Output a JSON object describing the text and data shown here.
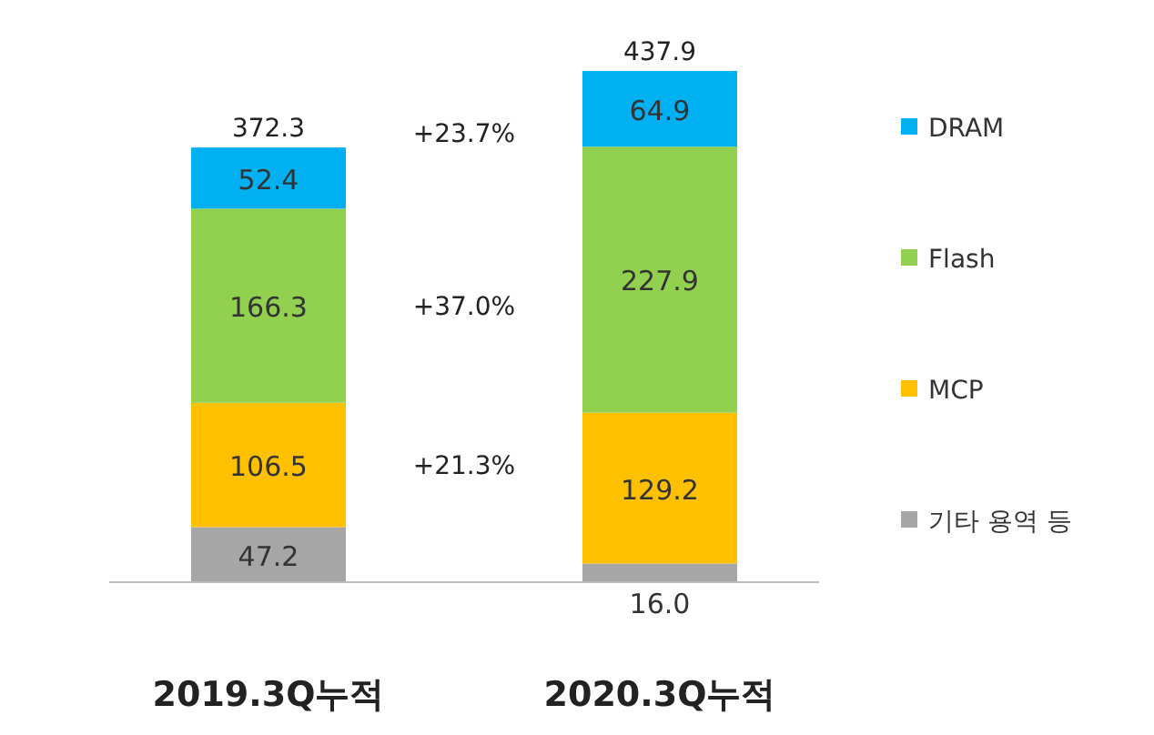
{
  "chart_data": {
    "type": "bar",
    "stacked": true,
    "legend": "right",
    "categories": [
      "2019.3Q누적",
      "2020.3Q누적"
    ],
    "series": [
      {
        "name": "기타 용역 등",
        "color": "#a6a6a6",
        "values": [
          47.2,
          16.0
        ],
        "value_labels": [
          "47.2",
          "16.0"
        ]
      },
      {
        "name": "MCP",
        "color": "#ffc000",
        "values": [
          106.5,
          129.2
        ],
        "value_labels": [
          "106.5",
          "129.2"
        ]
      },
      {
        "name": "Flash",
        "color": "#92d050",
        "values": [
          166.3,
          227.9
        ],
        "value_labels": [
          "166.3",
          "227.9"
        ]
      },
      {
        "name": "DRAM",
        "color": "#00b0f0",
        "values": [
          52.4,
          64.9
        ],
        "value_labels": [
          "52.4",
          "64.9"
        ]
      }
    ],
    "totals": [
      "372.3",
      "437.9"
    ],
    "annotations": [
      "+23.7%",
      "+37.0%",
      "+21.3%"
    ]
  }
}
